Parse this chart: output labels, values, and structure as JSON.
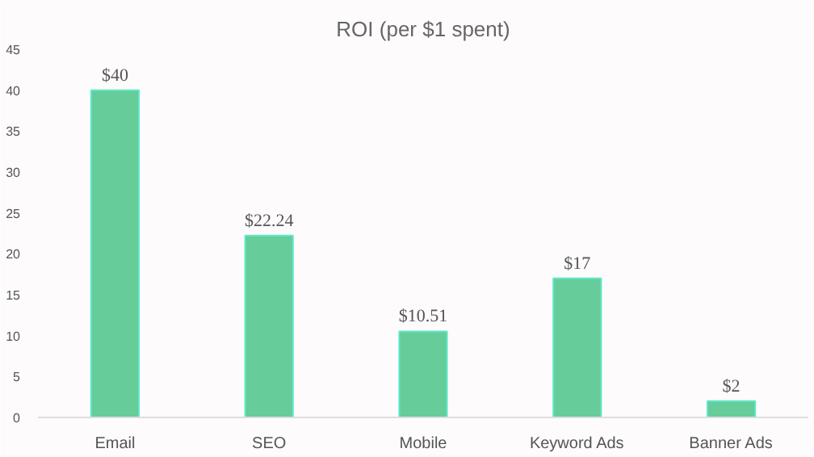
{
  "chart_data": {
    "type": "bar",
    "title": "ROI (per $1 spent)",
    "categories": [
      "Email",
      "SEO",
      "Mobile",
      "Keyword Ads",
      "Banner Ads"
    ],
    "values": [
      40,
      22.24,
      10.51,
      17,
      2
    ],
    "value_labels": [
      "$40",
      "$22.24",
      "$10.51",
      "$17",
      "$2"
    ],
    "color": "#66cc99",
    "ylim": [
      0,
      45
    ],
    "yticks": [
      0,
      5,
      10,
      15,
      20,
      25,
      30,
      35,
      40,
      45
    ],
    "grid": false
  }
}
